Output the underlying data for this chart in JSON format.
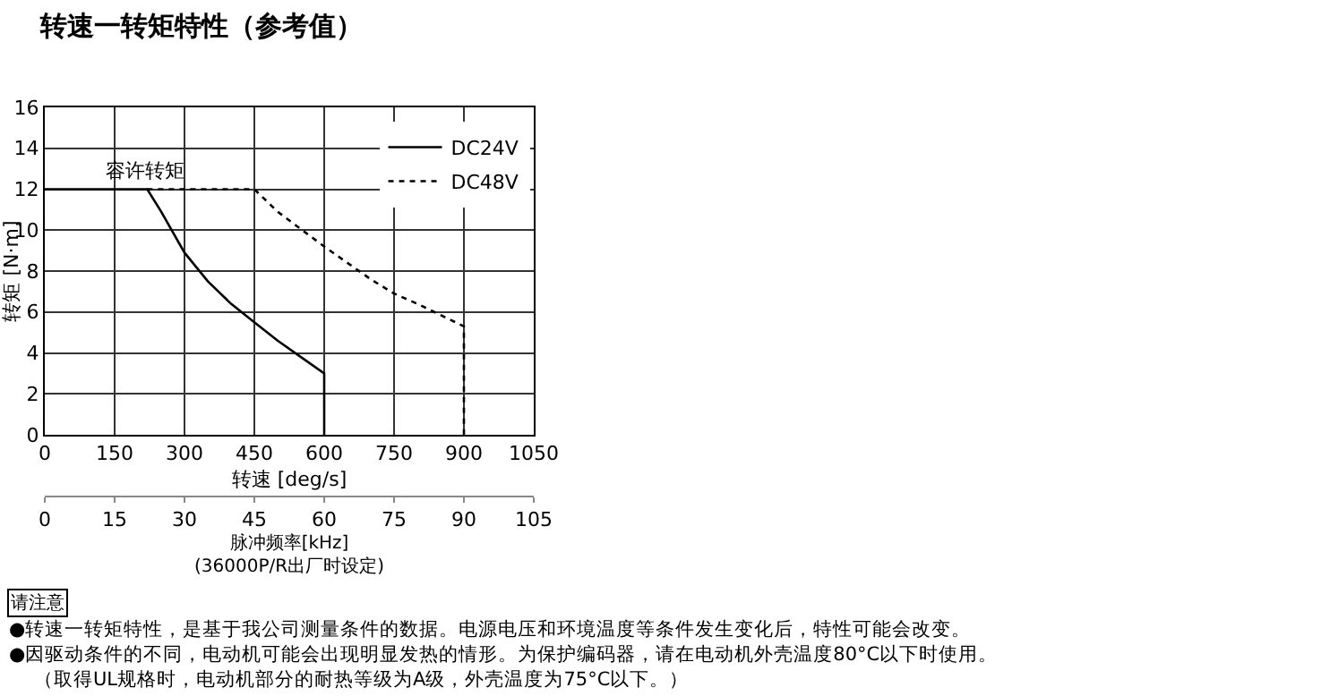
{
  "chart_data": {
    "type": "line",
    "title": "转速一转矩特性（参考值）",
    "xlabel": "转速 [deg/s]",
    "ylabel": "转矩 [N·m]",
    "x2label": "脉冲频率[kHz]\n(36000P/R出厂时设定)",
    "xlim": [
      0,
      1050
    ],
    "xticks": [
      0,
      150,
      300,
      450,
      600,
      750,
      900,
      1050
    ],
    "x2lim": [
      0,
      105
    ],
    "x2ticks": [
      0,
      15,
      30,
      45,
      60,
      75,
      90,
      105
    ],
    "ylim": [
      0,
      16
    ],
    "yticks": [
      0,
      2,
      4,
      6,
      8,
      10,
      12,
      14,
      16
    ],
    "series": [
      {
        "name": "DC24V",
        "color": "#000000",
        "line_style": "solid",
        "x": [
          0,
          220,
          250,
          300,
          350,
          400,
          450,
          500,
          550,
          600,
          600
        ],
        "values": [
          12,
          12,
          10.9,
          8.9,
          7.5,
          6.4,
          5.5,
          4.6,
          3.8,
          3.0,
          0
        ]
      },
      {
        "name": "DC48V",
        "color": "#000000",
        "line_style": "dotted",
        "x": [
          220,
          450,
          500,
          600,
          700,
          750,
          800,
          900,
          900
        ],
        "values": [
          12,
          12,
          10.9,
          9.2,
          7.6,
          6.9,
          6.4,
          5.3,
          0
        ]
      }
    ],
    "annotations": [
      {
        "text": "容许转矩",
        "x": 215,
        "y": 12
      },
      "请注意",
      "●转速一转矩特性，是基于我公司测量条件的数据。电源电压和环境温度等条件发生变化后，特性可能会改变。",
      "●因驱动条件的不同，电动机可能会出现明显发热的情形。为保护编码器，请在电动机外壳温度80°C以下时使用。",
      "（取得UL规格时，电动机部分的耐热等级为A级，外壳温度为75°C以下。）"
    ],
    "grid": true,
    "legend": "top right",
    "marker": "none"
  }
}
